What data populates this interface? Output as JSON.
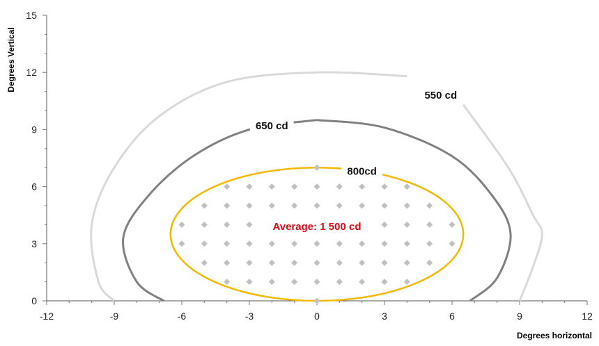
{
  "chart_data": {
    "type": "scatter",
    "xlabel": "Degrees horizontal",
    "ylabel": "Degrees Vertical",
    "xlim": [
      -12,
      12
    ],
    "ylim": [
      0,
      15
    ],
    "xticks": [
      -12,
      -9,
      -6,
      -3,
      0,
      3,
      6,
      9,
      12
    ],
    "yticks": [
      0,
      3,
      6,
      9,
      12,
      15
    ],
    "grid": false,
    "annotation": {
      "text": "Average: 1 500 cd",
      "x": 0,
      "y": 3.9,
      "color": "#e30613"
    },
    "contours": [
      {
        "label": "550 cd",
        "color": "#d9d9d9",
        "label_x": 5.5,
        "label_y": 10.8,
        "points": [
          [
            4,
            11.8
          ],
          [
            0,
            12.0
          ],
          [
            -4,
            11.5
          ],
          [
            -7,
            9.7
          ],
          [
            -9,
            7.0
          ],
          [
            -10,
            4.0
          ],
          [
            -9.7,
            1.0
          ],
          [
            -9,
            0
          ]
        ],
        "right_points": [
          [
            6.5,
            10.3
          ],
          [
            8.5,
            7.0
          ],
          [
            9.6,
            4.5
          ],
          [
            10,
            3.5
          ],
          [
            9.6,
            1.8
          ],
          [
            9,
            0
          ]
        ]
      },
      {
        "label": "650 cd",
        "color": "#808080",
        "label_x": -2.0,
        "label_y": 9.2,
        "points": [
          [
            0,
            9.5
          ],
          [
            -3,
            9.0
          ],
          [
            -5.5,
            7.6
          ],
          [
            -7.5,
            5.5
          ],
          [
            -8.6,
            3.3
          ],
          [
            -8,
            1.0
          ],
          [
            -6.8,
            0
          ]
        ],
        "right_points": [
          [
            0,
            9.5
          ],
          [
            3,
            9.1
          ],
          [
            6,
            7.6
          ],
          [
            7.8,
            5.5
          ],
          [
            8.6,
            3.5
          ],
          [
            8,
            1.2
          ],
          [
            6.8,
            0
          ]
        ]
      },
      {
        "label": "800cd",
        "color": "#f5b800",
        "label_x": 2.0,
        "label_y": 6.8,
        "ellipse": {
          "cx": 0,
          "cy": 3.5,
          "rx": 6.5,
          "ry": 3.5
        }
      }
    ],
    "measurement_points": {
      "color": "#c0c0c0",
      "rows": [
        {
          "y": 7,
          "x": [
            0
          ]
        },
        {
          "y": 6,
          "x": [
            -4,
            -3,
            -2,
            -1,
            0,
            1,
            2,
            3,
            4
          ]
        },
        {
          "y": 5,
          "x": [
            -5,
            -4,
            -3,
            -2,
            -1,
            0,
            1,
            2,
            3,
            4,
            5
          ]
        },
        {
          "y": 4,
          "x": [
            -6,
            -5,
            -4,
            -3,
            3,
            4,
            5,
            6
          ]
        },
        {
          "y": 3,
          "x": [
            -6,
            -5,
            -4,
            -3,
            -2,
            -1,
            0,
            1,
            2,
            3,
            4,
            5,
            6
          ]
        },
        {
          "y": 2,
          "x": [
            -5,
            -4,
            -3,
            -2,
            -1,
            0,
            1,
            2,
            3,
            4,
            5
          ]
        },
        {
          "y": 1,
          "x": [
            -4,
            -3,
            -2,
            -1,
            0,
            1,
            2,
            3,
            4
          ]
        },
        {
          "y": 0,
          "x": [
            0
          ]
        }
      ]
    }
  }
}
